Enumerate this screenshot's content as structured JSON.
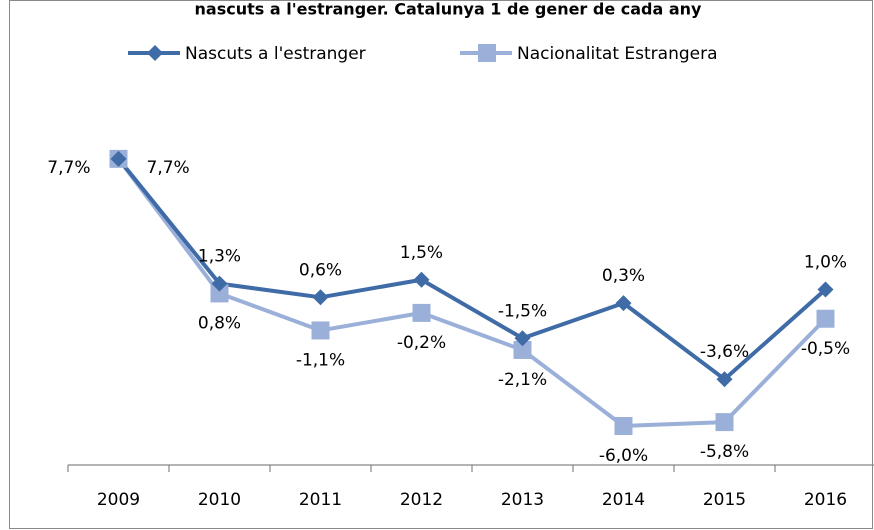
{
  "chart_data": {
    "type": "line",
    "title": "nascuts a l'estranger. Catalunya 1 de gener de cada any",
    "categories": [
      "2009",
      "2010",
      "2011",
      "2012",
      "2013",
      "2014",
      "2015",
      "2016"
    ],
    "series": [
      {
        "name": "Nascuts a l'estranger",
        "color": "#3f6ba6",
        "marker": "diamond",
        "values": [
          7.7,
          1.3,
          0.6,
          1.5,
          -1.5,
          0.3,
          -3.6,
          1.0
        ],
        "value_labels": [
          "7,7%",
          "1,3%",
          "0,6%",
          "1,5%",
          "-1,5%",
          "0,3%",
          "-3,6%",
          "1,0%"
        ]
      },
      {
        "name": "Nacionalitat Estrangera",
        "color": "#9bb0d8",
        "marker": "square",
        "values": [
          7.7,
          0.8,
          -1.1,
          -0.2,
          -2.1,
          -6.0,
          -5.8,
          -0.5
        ],
        "value_labels": [
          "7,7%",
          "0,8%",
          "-1,1%",
          "-0,2%",
          "-2,1%",
          "-6,0%",
          "-5,8%",
          "-0,5%"
        ]
      }
    ],
    "ylim": [
      -8,
      10
    ],
    "legend": "top"
  }
}
